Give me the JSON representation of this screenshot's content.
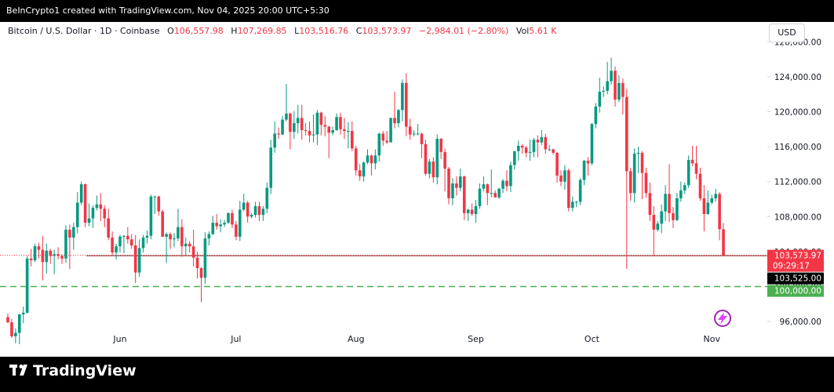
{
  "header": {
    "credit": "BeInCrypto1 created with TradingView.com, Nov 04, 2025 20:00 UTC+5:30"
  },
  "footer": {
    "brand": "TradingView"
  },
  "chart_data": {
    "type": "candlestick",
    "title": "Bitcoin / U.S. Dollar · 1D · Coinbase",
    "legend": [
      {
        "key": "O",
        "text": "106,557.98"
      },
      {
        "key": "H",
        "text": "107,269.85"
      },
      {
        "key": "L",
        "text": "103,516.76"
      },
      {
        "key": "C",
        "text": "103,573.97"
      }
    ],
    "change": "−2,984.01 (−2.80%)",
    "volume_key": "Vol",
    "volume": "5.61 K",
    "currency": "USD",
    "up_color": "#089981",
    "down_color": "#f23645",
    "grid": false,
    "ylim": [
      92860,
      128130
    ],
    "yticks": [
      {
        "value": 96000,
        "label": "96,000.00"
      },
      {
        "value": 100000,
        "label": "100,000.00"
      },
      {
        "value": 104000,
        "label": "104,000.00"
      },
      {
        "value": 108000,
        "label": "108,000.00"
      },
      {
        "value": 112000,
        "label": "112,000.00"
      },
      {
        "value": 116000,
        "label": "116,000.00"
      },
      {
        "value": 120000,
        "label": "120,000.00"
      },
      {
        "value": 124000,
        "label": "124,000.00"
      },
      {
        "value": 128000,
        "label": "128,000.00"
      }
    ],
    "price_lines": [
      {
        "value": 103573.97,
        "label": "103,573.97",
        "countdown": "09:29:17",
        "color": "#f23645",
        "style": "dotted"
      },
      {
        "value": 103525,
        "label": "103,525.00",
        "color": "#000000",
        "style": "solid"
      },
      {
        "value": 100000,
        "label": "100,000.00",
        "color": "#4caf50",
        "style": "dashed"
      }
    ],
    "categories": [
      null,
      null,
      null,
      null,
      null,
      null,
      null,
      null,
      null,
      null,
      null,
      null,
      null,
      null,
      null,
      null,
      null,
      null,
      null,
      null,
      null,
      null,
      null,
      null,
      null,
      null,
      null,
      null,
      null,
      "Jun",
      null,
      null,
      null,
      null,
      null,
      null,
      null,
      null,
      null,
      null,
      null,
      null,
      null,
      null,
      null,
      null,
      null,
      null,
      null,
      null,
      null,
      null,
      null,
      null,
      null,
      null,
      null,
      null,
      null,
      "Jul",
      null,
      null,
      null,
      null,
      null,
      null,
      null,
      null,
      null,
      null,
      null,
      null,
      null,
      null,
      null,
      null,
      null,
      null,
      null,
      null,
      null,
      null,
      null,
      null,
      null,
      null,
      null,
      null,
      null,
      null,
      "Aug",
      null,
      null,
      null,
      null,
      null,
      null,
      null,
      null,
      null,
      null,
      null,
      null,
      null,
      null,
      null,
      null,
      null,
      null,
      null,
      null,
      null,
      null,
      null,
      null,
      null,
      null,
      null,
      null,
      null,
      null,
      "Sep",
      null,
      null,
      null,
      null,
      null,
      null,
      null,
      null,
      null,
      null,
      null,
      null,
      null,
      null,
      null,
      null,
      null,
      null,
      null,
      null,
      null,
      null,
      null,
      null,
      null,
      null,
      null,
      null,
      null,
      "Oct",
      null,
      null,
      null,
      null,
      null,
      null,
      null,
      null,
      null,
      null,
      null,
      null,
      null,
      null,
      null,
      null,
      null,
      null,
      null,
      null,
      null,
      null,
      null,
      null,
      null,
      null,
      null,
      null,
      null,
      null,
      "Nov",
      null,
      null,
      null
    ],
    "ohlc": [
      [
        96500,
        96900,
        95800,
        95900
      ],
      [
        95900,
        96300,
        94100,
        94300
      ],
      [
        94300,
        95200,
        93500,
        94700
      ],
      [
        94700,
        96900,
        93400,
        96800
      ],
      [
        96800,
        97700,
        95800,
        97000
      ],
      [
        97000,
        103500,
        96900,
        103200
      ],
      [
        103200,
        104300,
        102300,
        103000
      ],
      [
        103000,
        104900,
        102800,
        104600
      ],
      [
        104600,
        105000,
        103200,
        104200
      ],
      [
        104200,
        105800,
        100700,
        102800
      ],
      [
        102800,
        104900,
        101500,
        104100
      ],
      [
        104100,
        104300,
        102600,
        103500
      ],
      [
        103500,
        104200,
        101400,
        103700
      ],
      [
        103700,
        104500,
        103100,
        103500
      ],
      [
        103500,
        103700,
        102600,
        103200
      ],
      [
        103200,
        107000,
        102700,
        106500
      ],
      [
        106500,
        107100,
        102000,
        105600
      ],
      [
        105600,
        107300,
        104200,
        106800
      ],
      [
        106800,
        110800,
        106100,
        109600
      ],
      [
        109600,
        112000,
        109300,
        111700
      ],
      [
        111700,
        111800,
        106800,
        107300
      ],
      [
        107300,
        109500,
        106900,
        107800
      ],
      [
        107800,
        109300,
        106700,
        109000
      ],
      [
        109000,
        110400,
        108700,
        109400
      ],
      [
        109400,
        110700,
        107500,
        108900
      ],
      [
        108900,
        109300,
        106800,
        107800
      ],
      [
        107800,
        108900,
        105300,
        105600
      ],
      [
        105600,
        106300,
        103600,
        103900
      ],
      [
        103900,
        104900,
        103100,
        104600
      ],
      [
        104600,
        105900,
        103900,
        105700
      ],
      [
        105700,
        105900,
        103800,
        105800
      ],
      [
        105800,
        106800,
        104900,
        105400
      ],
      [
        105400,
        106000,
        104300,
        104700
      ],
      [
        104700,
        105900,
        100400,
        101600
      ],
      [
        101600,
        105400,
        101100,
        104400
      ],
      [
        104400,
        105900,
        103900,
        105600
      ],
      [
        105600,
        106400,
        104900,
        105800
      ],
      [
        105800,
        110500,
        105400,
        110300
      ],
      [
        110300,
        110400,
        108300,
        110300
      ],
      [
        110300,
        110400,
        108100,
        108600
      ],
      [
        108600,
        108800,
        105700,
        105700
      ],
      [
        105700,
        106200,
        102700,
        106000
      ],
      [
        106000,
        106200,
        104300,
        105400
      ],
      [
        105400,
        106100,
        104500,
        105500
      ],
      [
        105500,
        108900,
        105200,
        106800
      ],
      [
        106800,
        107700,
        103400,
        104600
      ],
      [
        104600,
        105600,
        103500,
        104900
      ],
      [
        104900,
        105200,
        103900,
        104600
      ],
      [
        104600,
        106500,
        102300,
        103300
      ],
      [
        103300,
        104000,
        100900,
        102100
      ],
      [
        102100,
        102200,
        98200,
        101000
      ],
      [
        101000,
        106200,
        100300,
        105500
      ],
      [
        105500,
        106300,
        104700,
        106000
      ],
      [
        106000,
        108100,
        105900,
        107300
      ],
      [
        107300,
        108300,
        106500,
        106900
      ],
      [
        106900,
        107700,
        106200,
        107100
      ],
      [
        107100,
        107600,
        106800,
        107300
      ],
      [
        107300,
        108500,
        107200,
        108400
      ],
      [
        108400,
        108800,
        106700,
        107100
      ],
      [
        107100,
        107500,
        105300,
        105700
      ],
      [
        105700,
        109800,
        105200,
        108800
      ],
      [
        108800,
        110600,
        108600,
        109600
      ],
      [
        109600,
        109800,
        107300,
        108000
      ],
      [
        108000,
        108400,
        107800,
        108200
      ],
      [
        108200,
        109700,
        107900,
        109200
      ],
      [
        109200,
        109700,
        107500,
        108200
      ],
      [
        108200,
        109200,
        107500,
        108900
      ],
      [
        108900,
        111900,
        108400,
        111300
      ],
      [
        111300,
        116800,
        110600,
        115900
      ],
      [
        115900,
        118900,
        115300,
        117500
      ],
      [
        117500,
        118200,
        116900,
        117400
      ],
      [
        117400,
        119500,
        117300,
        119100
      ],
      [
        119100,
        123200,
        118900,
        119800
      ],
      [
        119800,
        119900,
        115700,
        117700
      ],
      [
        117700,
        120100,
        116900,
        118700
      ],
      [
        118700,
        120800,
        117500,
        119300
      ],
      [
        119300,
        120800,
        116800,
        117900
      ],
      [
        117900,
        118700,
        117300,
        117800
      ],
      [
        117800,
        118900,
        116500,
        117300
      ],
      [
        117300,
        119700,
        116500,
        117400
      ],
      [
        117400,
        120200,
        116200,
        119900
      ],
      [
        119900,
        120000,
        117300,
        118500
      ],
      [
        118500,
        119500,
        117200,
        118300
      ],
      [
        118300,
        118400,
        114700,
        117600
      ],
      [
        117600,
        118300,
        117300,
        117900
      ],
      [
        117900,
        119800,
        117800,
        119400
      ],
      [
        119400,
        119900,
        117400,
        118000
      ],
      [
        118000,
        119300,
        116900,
        117800
      ],
      [
        117800,
        118800,
        115800,
        117800
      ],
      [
        117800,
        118900,
        115500,
        115800
      ],
      [
        115800,
        116100,
        112700,
        113300
      ],
      [
        113300,
        114000,
        112100,
        112600
      ],
      [
        112600,
        114300,
        112000,
        114200
      ],
      [
        114200,
        115700,
        114000,
        115000
      ],
      [
        115000,
        115100,
        112700,
        114100
      ],
      [
        114100,
        115700,
        113400,
        115000
      ],
      [
        115000,
        117600,
        114300,
        117500
      ],
      [
        117500,
        117800,
        116100,
        116700
      ],
      [
        116700,
        117800,
        116300,
        116500
      ],
      [
        116500,
        119300,
        116500,
        119300
      ],
      [
        119300,
        122300,
        118100,
        118700
      ],
      [
        118700,
        120300,
        118200,
        120200
      ],
      [
        120200,
        123700,
        118900,
        123300
      ],
      [
        123300,
        124400,
        117200,
        118300
      ],
      [
        118300,
        119200,
        116800,
        117400
      ],
      [
        117400,
        117900,
        117200,
        117500
      ],
      [
        117500,
        118600,
        117300,
        117500
      ],
      [
        117500,
        117600,
        114700,
        116300
      ],
      [
        116300,
        116800,
        112700,
        112900
      ],
      [
        112900,
        114600,
        112400,
        114300
      ],
      [
        114300,
        114800,
        111900,
        112500
      ],
      [
        112500,
        117400,
        111700,
        116900
      ],
      [
        116900,
        117000,
        114600,
        115400
      ],
      [
        115400,
        115800,
        110900,
        113500
      ],
      [
        113500,
        113700,
        109400,
        110100
      ],
      [
        110100,
        112400,
        109300,
        111800
      ],
      [
        111800,
        112600,
        110400,
        111300
      ],
      [
        111300,
        113500,
        110900,
        112600
      ],
      [
        112600,
        112700,
        107600,
        108400
      ],
      [
        108400,
        108900,
        107500,
        108800
      ],
      [
        108800,
        109500,
        108100,
        108300
      ],
      [
        108300,
        109900,
        107300,
        109200
      ],
      [
        109200,
        111800,
        108900,
        111200
      ],
      [
        111200,
        112600,
        110900,
        111700
      ],
      [
        111700,
        111800,
        109300,
        110700
      ],
      [
        110700,
        113400,
        110200,
        110700
      ],
      [
        110700,
        111000,
        110200,
        110200
      ],
      [
        110200,
        111300,
        110000,
        111200
      ],
      [
        111200,
        112300,
        110700,
        112100
      ],
      [
        112100,
        113300,
        110900,
        111500
      ],
      [
        111500,
        114300,
        110800,
        113900
      ],
      [
        113900,
        115500,
        113400,
        115500
      ],
      [
        115500,
        116700,
        114400,
        116100
      ],
      [
        116100,
        116300,
        115200,
        115900
      ],
      [
        115900,
        116100,
        114800,
        115300
      ],
      [
        115300,
        116800,
        114400,
        115400
      ],
      [
        115400,
        117000,
        114800,
        116800
      ],
      [
        116800,
        117300,
        114800,
        116500
      ],
      [
        116500,
        117900,
        116200,
        117100
      ],
      [
        117100,
        117500,
        115200,
        115700
      ],
      [
        115700,
        116200,
        115500,
        115700
      ],
      [
        115700,
        115800,
        115100,
        115300
      ],
      [
        115300,
        115400,
        111900,
        112700
      ],
      [
        112700,
        113300,
        111500,
        112000
      ],
      [
        112000,
        113900,
        111100,
        113300
      ],
      [
        113300,
        113500,
        108600,
        109000
      ],
      [
        109000,
        110300,
        108600,
        109700
      ],
      [
        109700,
        109800,
        109100,
        109700
      ],
      [
        109700,
        112400,
        109300,
        112200
      ],
      [
        112200,
        114500,
        111600,
        114400
      ],
      [
        114400,
        114800,
        112700,
        114100
      ],
      [
        114100,
        118700,
        113900,
        118600
      ],
      [
        118600,
        121000,
        118100,
        120600
      ],
      [
        120600,
        123900,
        119900,
        122300
      ],
      [
        122300,
        122900,
        121700,
        122400
      ],
      [
        122400,
        125700,
        122000,
        123500
      ],
      [
        123500,
        126200,
        123100,
        124700
      ],
      [
        124700,
        125200,
        120600,
        121400
      ],
      [
        121400,
        124200,
        121100,
        123300
      ],
      [
        123300,
        123800,
        119700,
        121700
      ],
      [
        121700,
        122600,
        102000,
        113200
      ],
      [
        113200,
        113600,
        109800,
        110700
      ],
      [
        110700,
        115800,
        109600,
        115200
      ],
      [
        115200,
        116000,
        113000,
        115300
      ],
      [
        115300,
        115500,
        110000,
        113000
      ],
      [
        113000,
        113600,
        110200,
        110700
      ],
      [
        110700,
        111900,
        107500,
        108200
      ],
      [
        108200,
        109200,
        103600,
        106500
      ],
      [
        106500,
        107500,
        106300,
        107200
      ],
      [
        107200,
        109400,
        106100,
        108600
      ],
      [
        108600,
        111600,
        107500,
        110600
      ],
      [
        110600,
        114000,
        107400,
        108400
      ],
      [
        108400,
        109100,
        106700,
        107600
      ],
      [
        107600,
        110700,
        107500,
        110100
      ],
      [
        110100,
        112000,
        109700,
        111000
      ],
      [
        111000,
        111900,
        110600,
        111600
      ],
      [
        111600,
        115000,
        111300,
        114500
      ],
      [
        114500,
        116100,
        113800,
        114100
      ],
      [
        114100,
        116100,
        112300,
        112900
      ],
      [
        112900,
        113600,
        109800,
        110100
      ],
      [
        110100,
        111600,
        106300,
        108300
      ],
      [
        108300,
        111000,
        108200,
        109600
      ],
      [
        109600,
        110500,
        109400,
        110100
      ],
      [
        110100,
        111200,
        109700,
        110600
      ],
      [
        110600,
        110800,
        105300,
        106560
      ],
      [
        106557.98,
        107269.85,
        103516.76,
        103573.97
      ]
    ]
  }
}
